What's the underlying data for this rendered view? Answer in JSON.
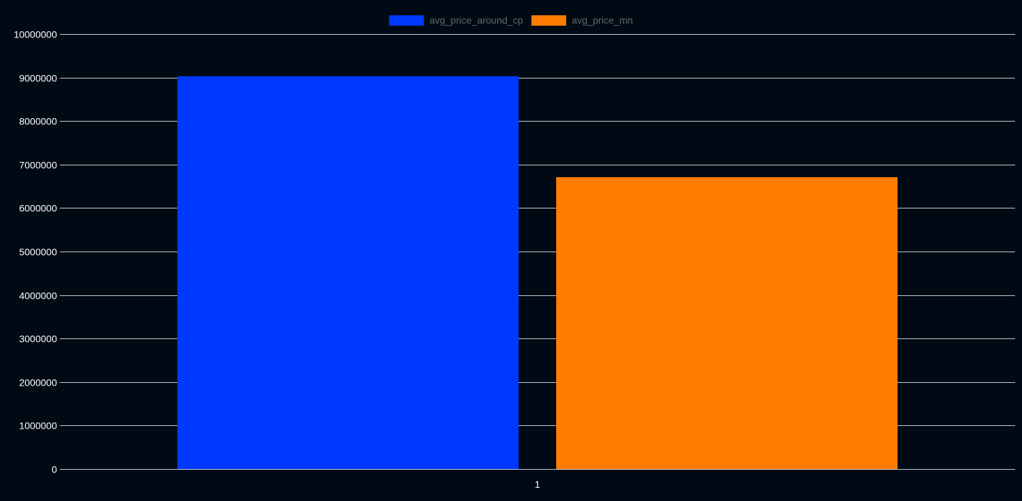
{
  "chart_data": {
    "type": "bar",
    "categories": [
      "1"
    ],
    "series": [
      {
        "name": "avg_price_around_cp",
        "values": [
          9030000
        ],
        "color": "#0038ff"
      },
      {
        "name": "avg_price_mn",
        "values": [
          6710000
        ],
        "color": "#ff7c00"
      }
    ],
    "ylim": [
      0,
      10000000
    ],
    "yticks": [
      "0",
      "1000000",
      "2000000",
      "3000000",
      "4000000",
      "5000000",
      "6000000",
      "7000000",
      "8000000",
      "9000000",
      "10000000"
    ],
    "grid": true,
    "legend_position": "top-center",
    "background_color": "#000a14",
    "text_color": "#ffffff",
    "legend_text_color": "#666666"
  }
}
